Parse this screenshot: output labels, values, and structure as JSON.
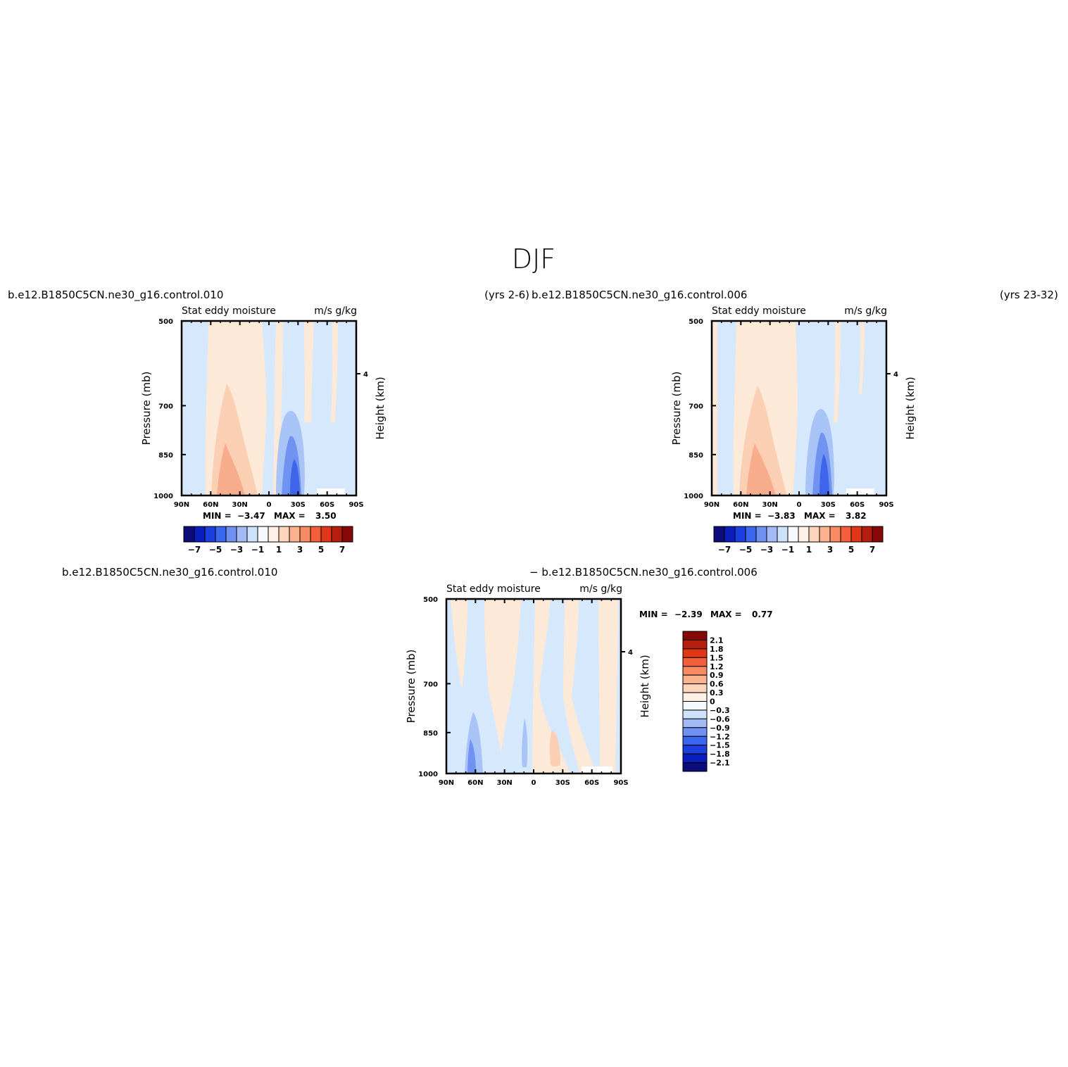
{
  "figure": {
    "title": "DJF"
  },
  "chart_data": [
    {
      "type": "heatmap",
      "case_label": "b.e12.B1850C5CN.ne30_g16.control.010",
      "years_label": "(yrs  2-6)",
      "title_left": "Stat  eddy  moisture",
      "title_right": "m/s  g/kg",
      "ylabel": "Pressure  (mb)",
      "ylabel_right": "Height  (km)",
      "x_ticks": [
        "90N",
        "60N",
        "30N",
        "0",
        "30S",
        "60S",
        "90S"
      ],
      "y_ticks": [
        "500",
        "700",
        "850",
        "1000"
      ],
      "y_right_ticks": [
        "4"
      ],
      "min_label": "MIN =",
      "min_value": "−3.47",
      "max_label": "MAX =",
      "max_value": "3.50",
      "colorbar_labels": [
        "−7",
        "−5",
        "−3",
        "−1",
        "1",
        "3",
        "5",
        "7"
      ]
    },
    {
      "type": "heatmap",
      "case_label": "b.e12.B1850C5CN.ne30_g16.control.006",
      "years_label": "(yrs  23-32)",
      "title_left": "Stat  eddy  moisture",
      "title_right": "m/s  g/kg",
      "ylabel": "Pressure  (mb)",
      "ylabel_right": "Height  (km)",
      "x_ticks": [
        "90N",
        "60N",
        "30N",
        "0",
        "30S",
        "60S",
        "90S"
      ],
      "y_ticks": [
        "500",
        "700",
        "850",
        "1000"
      ],
      "y_right_ticks": [
        "4"
      ],
      "min_label": "MIN =",
      "min_value": "−3.83",
      "max_label": "MAX =",
      "max_value": "3.82",
      "colorbar_labels": [
        "−7",
        "−5",
        "−3",
        "−1",
        "1",
        "3",
        "5",
        "7"
      ]
    },
    {
      "type": "heatmap",
      "case_label": "b.e12.B1850C5CN.ne30_g16.control.010",
      "case_label_2": "−  b.e12.B1850C5CN.ne30_g16.control.006",
      "title_left": "Stat  eddy  moisture",
      "title_right": "m/s  g/kg",
      "ylabel": "Pressure  (mb)",
      "ylabel_right": "Height  (km)",
      "x_ticks": [
        "90N",
        "60N",
        "30N",
        "0",
        "30S",
        "60S",
        "90S"
      ],
      "y_ticks": [
        "500",
        "700",
        "850",
        "1000"
      ],
      "y_right_ticks": [
        "4"
      ],
      "min_label": "MIN =",
      "min_value": "−2.39",
      "max_label": "MAX =",
      "max_value": "0.77",
      "colorbar_labels": [
        "2.1",
        "1.8",
        "1.5",
        "1.2",
        "0.9",
        "0.6",
        "0.3",
        "0",
        "−0.3",
        "−0.6",
        "−0.9",
        "−1.2",
        "−1.5",
        "−1.8",
        "−2.1"
      ]
    }
  ],
  "palette": {
    "main16": [
      "#0c0c7a",
      "#0a1ebc",
      "#1c3fe0",
      "#3b66f0",
      "#6f91f2",
      "#a2bbf6",
      "#cfe2fb",
      "#f5f9ff",
      "#fff1e5",
      "#fdd5bb",
      "#fcb28f",
      "#f98a62",
      "#f35f3a",
      "#e23618",
      "#b51d0c",
      "#870808"
    ],
    "diff16": [
      "#0c0c7a",
      "#0a1ebc",
      "#1c3fe0",
      "#3b66f0",
      "#6f91f2",
      "#a2bbf6",
      "#cfe2fb",
      "#f5f9ff",
      "#fff1e5",
      "#fdd5bb",
      "#fcb28f",
      "#f98a62",
      "#f35f3a",
      "#e23618",
      "#b51d0c",
      "#870808"
    ]
  }
}
